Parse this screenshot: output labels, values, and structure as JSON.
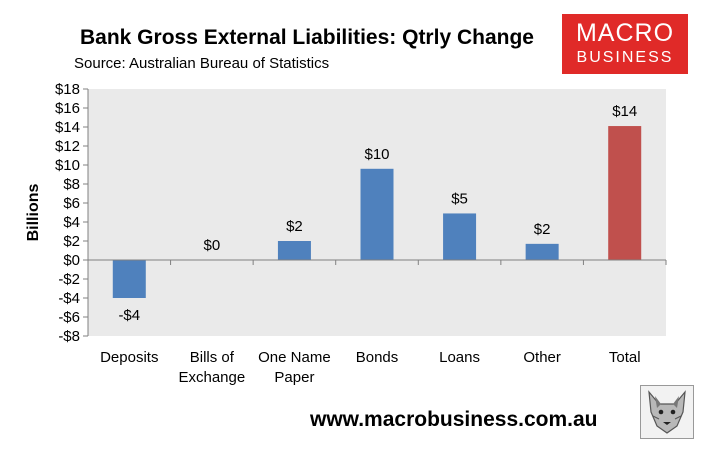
{
  "header": {
    "title": "Bank Gross External Liabilities: Qtrly Change",
    "subtitle": "Source: Australian Bureau of Statistics"
  },
  "logo": {
    "line1": "MACRO",
    "line2": "BUSINESS"
  },
  "footer": {
    "url": "www.macrobusiness.com.au"
  },
  "colors": {
    "bar": "#4f81bd",
    "total": "#c0504d",
    "plot_bg": "#eaeaea",
    "logo_bg": "#e02a28"
  },
  "icons": {
    "wolf": "wolf-logo-icon"
  },
  "chart_data": {
    "type": "bar",
    "title": "Bank Gross External Liabilities: Qtrly Change",
    "subtitle": "Source: Australian Bureau of Statistics",
    "ylabel": "Billions",
    "xlabel": "",
    "categories": [
      [
        "Deposits"
      ],
      [
        "Bills of",
        "Exchange"
      ],
      [
        "One Name",
        "Paper"
      ],
      [
        "Bonds"
      ],
      [
        "Loans"
      ],
      [
        "Other"
      ],
      [
        "Total"
      ]
    ],
    "values": [
      -4,
      0,
      2,
      9.6,
      4.9,
      1.7,
      14.1
    ],
    "data_labels": [
      "-$4",
      "$0",
      "$2",
      "$10",
      "$5",
      "$2",
      "$14"
    ],
    "highlight_index": 6,
    "ylim": [
      -8,
      18
    ],
    "yticks": [
      18,
      16,
      14,
      12,
      10,
      8,
      6,
      4,
      2,
      0,
      -2,
      -4,
      -6,
      -8
    ],
    "ytick_labels": [
      "$18",
      "$16",
      "$14",
      "$12",
      "$10",
      "$8",
      "$6",
      "$4",
      "$2",
      "$0",
      "-$2",
      "-$4",
      "-$6",
      "-$8"
    ],
    "grid": false,
    "legend": "none"
  }
}
